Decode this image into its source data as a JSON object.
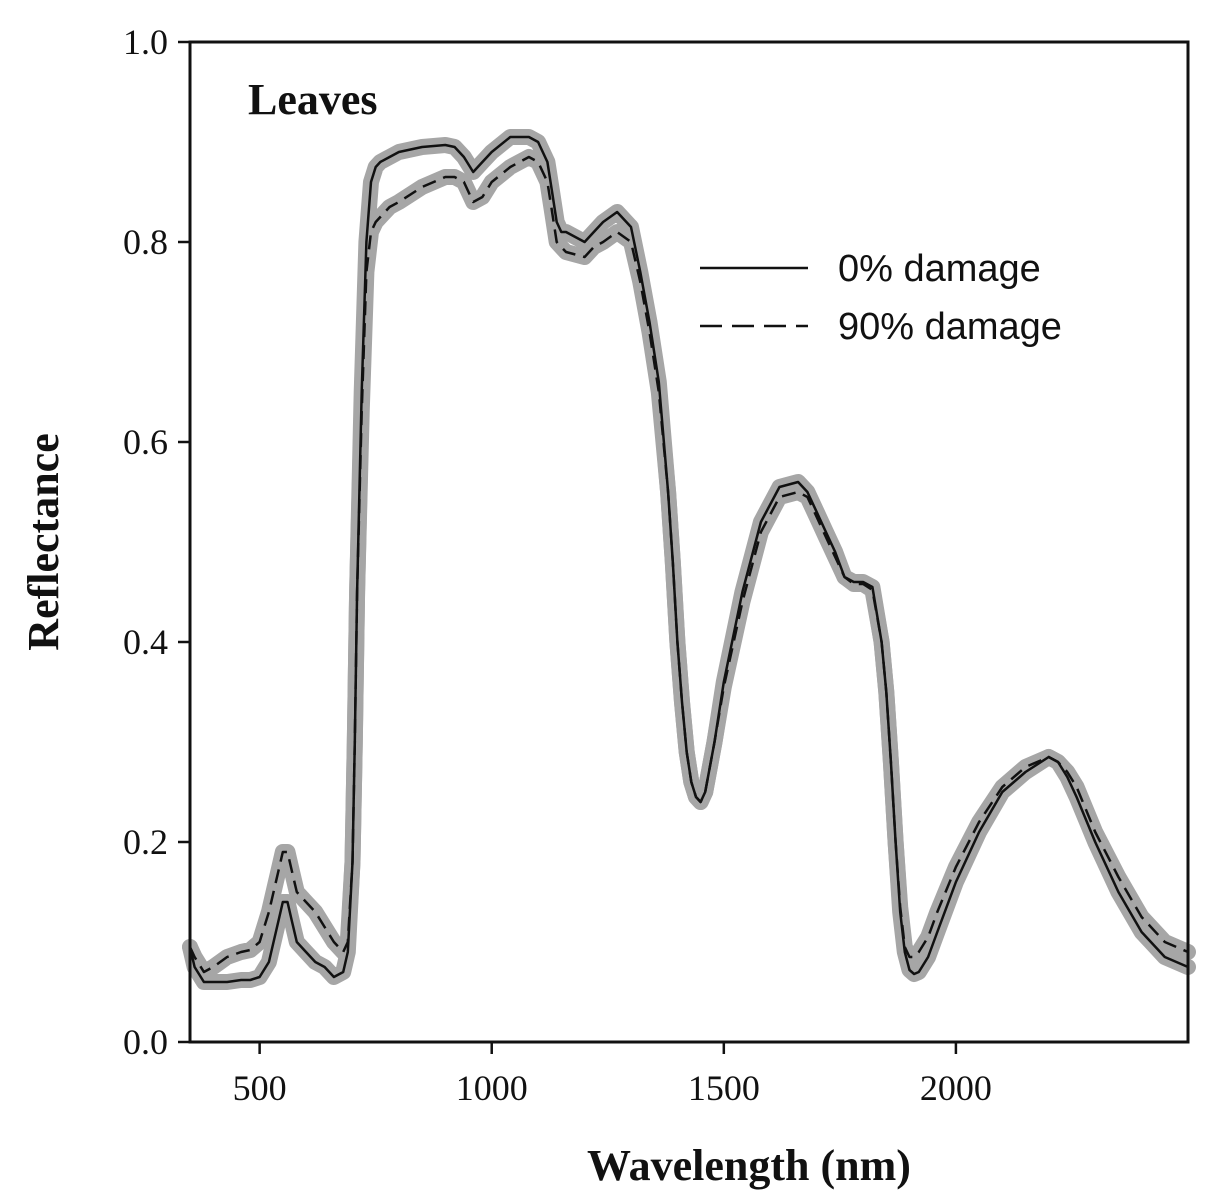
{
  "chart_data": {
    "type": "line",
    "title": "",
    "panel_label": "Leaves",
    "xlabel": "Wavelength (nm)",
    "ylabel": "Reflectance",
    "xlim": [
      350,
      2500
    ],
    "ylim": [
      0.0,
      1.0
    ],
    "x_ticks": [
      500,
      1000,
      1500,
      2000
    ],
    "x_tick_labels": [
      "500",
      "1000",
      "1500",
      "2000"
    ],
    "y_ticks": [
      0.0,
      0.2,
      0.4,
      0.6,
      0.8,
      1.0
    ],
    "y_tick_labels": [
      "0.0",
      "0.2",
      "0.4",
      "0.6",
      "0.8",
      "1.0"
    ],
    "grid": false,
    "legend_position": "top-right",
    "series": [
      {
        "name": "0% damage",
        "style": "solid",
        "color": "#111111",
        "band_color": "#a6a6a6",
        "x": [
          350,
          360,
          380,
          400,
          430,
          460,
          480,
          500,
          520,
          540,
          550,
          560,
          570,
          580,
          600,
          620,
          640,
          660,
          680,
          690,
          700,
          705,
          710,
          720,
          730,
          740,
          750,
          760,
          780,
          800,
          850,
          900,
          920,
          940,
          960,
          980,
          1000,
          1040,
          1080,
          1100,
          1120,
          1130,
          1140,
          1150,
          1160,
          1200,
          1220,
          1240,
          1270,
          1300,
          1320,
          1340,
          1360,
          1380,
          1390,
          1400,
          1410,
          1420,
          1430,
          1440,
          1450,
          1460,
          1480,
          1500,
          1540,
          1580,
          1620,
          1660,
          1680,
          1700,
          1720,
          1740,
          1760,
          1780,
          1800,
          1820,
          1840,
          1850,
          1860,
          1870,
          1880,
          1890,
          1900,
          1910,
          1920,
          1940,
          1960,
          2000,
          2050,
          2100,
          2150,
          2200,
          2220,
          2240,
          2260,
          2300,
          2350,
          2400,
          2450,
          2500
        ],
        "y": [
          0.095,
          0.075,
          0.06,
          0.06,
          0.06,
          0.062,
          0.062,
          0.065,
          0.08,
          0.12,
          0.14,
          0.14,
          0.12,
          0.1,
          0.09,
          0.08,
          0.075,
          0.065,
          0.07,
          0.09,
          0.18,
          0.3,
          0.45,
          0.65,
          0.8,
          0.86,
          0.875,
          0.88,
          0.885,
          0.89,
          0.895,
          0.897,
          0.895,
          0.885,
          0.87,
          0.88,
          0.89,
          0.905,
          0.905,
          0.9,
          0.88,
          0.85,
          0.82,
          0.81,
          0.81,
          0.8,
          0.81,
          0.82,
          0.83,
          0.815,
          0.77,
          0.72,
          0.66,
          0.55,
          0.48,
          0.4,
          0.34,
          0.29,
          0.26,
          0.245,
          0.24,
          0.25,
          0.3,
          0.36,
          0.45,
          0.52,
          0.555,
          0.56,
          0.55,
          0.53,
          0.51,
          0.49,
          0.465,
          0.46,
          0.46,
          0.455,
          0.4,
          0.35,
          0.28,
          0.2,
          0.13,
          0.09,
          0.072,
          0.068,
          0.07,
          0.085,
          0.11,
          0.16,
          0.21,
          0.25,
          0.27,
          0.285,
          0.28,
          0.265,
          0.245,
          0.2,
          0.15,
          0.11,
          0.085,
          0.075
        ]
      },
      {
        "name": "90% damage",
        "style": "dashed",
        "color": "#111111",
        "band_color": "#a6a6a6",
        "x": [
          350,
          360,
          380,
          400,
          430,
          460,
          480,
          500,
          520,
          540,
          550,
          560,
          570,
          580,
          600,
          620,
          640,
          660,
          680,
          690,
          700,
          705,
          710,
          720,
          730,
          740,
          750,
          760,
          780,
          800,
          850,
          900,
          920,
          940,
          960,
          980,
          1000,
          1040,
          1080,
          1100,
          1120,
          1130,
          1140,
          1150,
          1160,
          1200,
          1220,
          1240,
          1270,
          1300,
          1320,
          1340,
          1360,
          1380,
          1390,
          1400,
          1410,
          1420,
          1430,
          1440,
          1450,
          1460,
          1480,
          1500,
          1540,
          1580,
          1620,
          1660,
          1680,
          1700,
          1720,
          1740,
          1760,
          1780,
          1800,
          1820,
          1840,
          1850,
          1860,
          1870,
          1880,
          1890,
          1900,
          1910,
          1920,
          1940,
          1960,
          2000,
          2050,
          2100,
          2150,
          2200,
          2220,
          2240,
          2260,
          2300,
          2350,
          2400,
          2450,
          2500
        ],
        "y": [
          0.095,
          0.085,
          0.07,
          0.075,
          0.085,
          0.09,
          0.092,
          0.1,
          0.13,
          0.17,
          0.19,
          0.19,
          0.17,
          0.15,
          0.14,
          0.13,
          0.115,
          0.1,
          0.09,
          0.1,
          0.18,
          0.3,
          0.45,
          0.63,
          0.77,
          0.81,
          0.82,
          0.825,
          0.835,
          0.84,
          0.855,
          0.865,
          0.865,
          0.86,
          0.84,
          0.845,
          0.86,
          0.875,
          0.885,
          0.88,
          0.86,
          0.83,
          0.8,
          0.795,
          0.79,
          0.785,
          0.795,
          0.8,
          0.81,
          0.8,
          0.76,
          0.71,
          0.65,
          0.55,
          0.48,
          0.4,
          0.34,
          0.29,
          0.26,
          0.245,
          0.24,
          0.25,
          0.3,
          0.355,
          0.44,
          0.51,
          0.545,
          0.55,
          0.545,
          0.525,
          0.505,
          0.485,
          0.465,
          0.458,
          0.458,
          0.452,
          0.4,
          0.35,
          0.28,
          0.2,
          0.135,
          0.095,
          0.085,
          0.085,
          0.09,
          0.105,
          0.13,
          0.175,
          0.22,
          0.255,
          0.275,
          0.285,
          0.28,
          0.27,
          0.255,
          0.21,
          0.165,
          0.125,
          0.1,
          0.09
        ]
      }
    ]
  }
}
